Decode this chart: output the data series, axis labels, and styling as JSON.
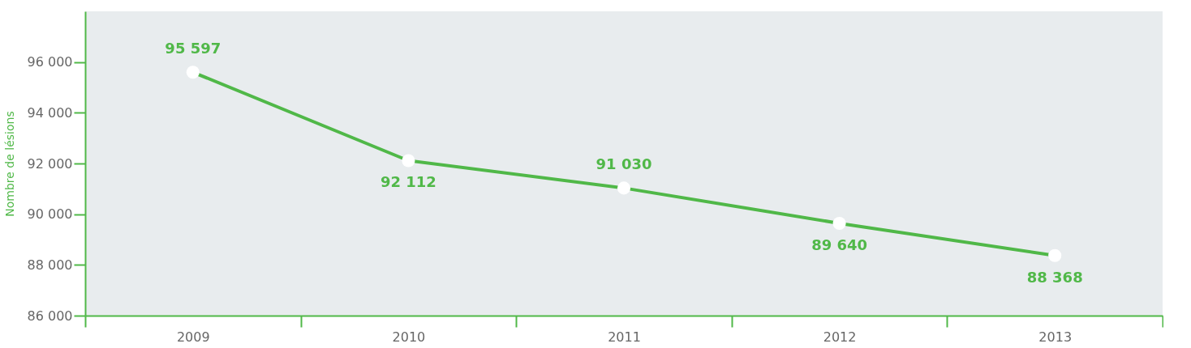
{
  "chart_data": {
    "type": "line",
    "ylabel": "Nombre de lésions",
    "categories": [
      "2009",
      "2010",
      "2011",
      "2012",
      "2013"
    ],
    "series": [
      {
        "color": "#50b848",
        "values": [
          95597,
          92112,
          91030,
          89640,
          88368
        ],
        "value_labels": [
          "95 597",
          "92 112",
          "91 030",
          "89 640",
          "88 368"
        ]
      }
    ],
    "ylim": [
      86000,
      98000
    ],
    "yticks": [
      {
        "value": 86000,
        "label": "86 000"
      },
      {
        "value": 88000,
        "label": "88 000"
      },
      {
        "value": 90000,
        "label": "90 000"
      },
      {
        "value": 92000,
        "label": "92 000"
      },
      {
        "value": 94000,
        "label": "94 000"
      },
      {
        "value": 96000,
        "label": "96 000"
      }
    ],
    "marker": "circle",
    "line_style": "solid",
    "grid": false
  }
}
